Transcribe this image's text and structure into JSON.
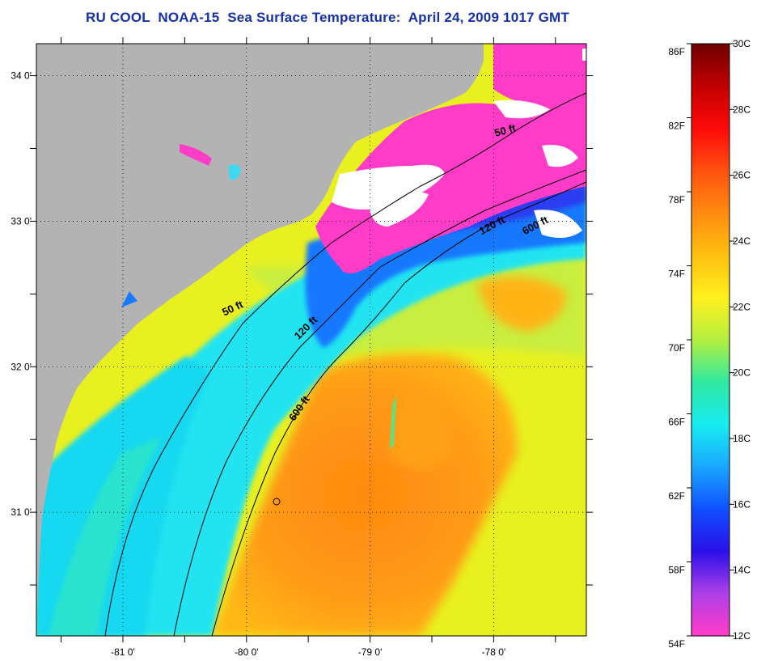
{
  "title": "RU COOL  NOAA-15  Sea Surface Temperature:  April 24, 2009 1017 GMT",
  "map": {
    "lon_range": [
      -81.7,
      -77.25
    ],
    "lat_range": [
      30.15,
      34.22
    ],
    "lon_ticks": [
      {
        "value": -81,
        "label": "-81 0'"
      },
      {
        "value": -80,
        "label": "-80 0'"
      },
      {
        "value": -79,
        "label": "-79 0'"
      },
      {
        "value": -78,
        "label": "-78 0'"
      }
    ],
    "lat_ticks": [
      {
        "value": 34,
        "label": "34 0'"
      },
      {
        "value": 33,
        "label": "33 0'"
      },
      {
        "value": 32,
        "label": "32 0'"
      },
      {
        "value": 31,
        "label": "31 0'"
      }
    ],
    "contour_labels": [
      {
        "label": "50 ft",
        "lon": -77.9,
        "lat": 33.6
      },
      {
        "label": "120 ft",
        "lon": -78.0,
        "lat": 32.95
      },
      {
        "label": "600 ft",
        "lon": -77.65,
        "lat": 32.95
      },
      {
        "label": "50 ft",
        "lon": -80.1,
        "lat": 32.38
      },
      {
        "label": "120 ft",
        "lon": -79.5,
        "lat": 32.25
      },
      {
        "label": "600 ft",
        "lon": -79.55,
        "lat": 31.7
      }
    ]
  },
  "colorbar": {
    "fahrenheit_labels": [
      "86F",
      "82F",
      "78F",
      "74F",
      "70F",
      "66F",
      "62F",
      "58F",
      "54F"
    ],
    "celsius_labels": [
      "30C",
      "28C",
      "26C",
      "24C",
      "22C",
      "20C",
      "18C",
      "16C",
      "14C",
      "12C"
    ],
    "colors": [
      "#ff3cc8",
      "#b040e8",
      "#2a10e8",
      "#1050ff",
      "#1aa8ff",
      "#18ecf0",
      "#30e8a0",
      "#b4f040",
      "#fff020",
      "#ffc010",
      "#ff8c10",
      "#ff5010",
      "#ff0a0a",
      "#c00000",
      "#6e0000"
    ]
  }
}
